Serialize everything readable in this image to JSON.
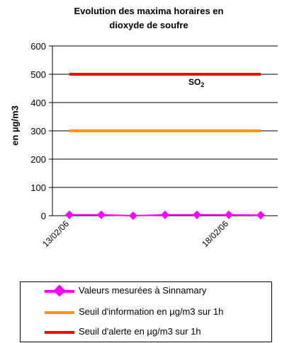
{
  "chart_data": {
    "type": "line",
    "title_line1": "Evolution des maxima horaires en",
    "title_line2": "dioxyde de soufre",
    "ylabel": "en µg/m3",
    "xlabel": "",
    "ylim": [
      0,
      600
    ],
    "yticks": [
      0,
      100,
      200,
      300,
      400,
      500,
      600
    ],
    "xticks": [
      "13/02/06",
      "18/02/06"
    ],
    "grid": true,
    "legend_position": "bottom",
    "annotation": "SO",
    "annotation_sub": "2",
    "series": [
      {
        "name": "Valeurs mesurées à Sinnamary",
        "color": "#ff00ff",
        "marker": "diamond",
        "x": [
          "13/02/06",
          "14/02/06",
          "15/02/06",
          "16/02/06",
          "17/02/06",
          "18/02/06",
          "19/02/06"
        ],
        "values": [
          3,
          3,
          0,
          3,
          3,
          3,
          2
        ]
      },
      {
        "name": "Seuil d'information en µg/m3 sur 1h",
        "color": "#ff9900",
        "x": [
          "13/02/06",
          "19/02/06"
        ],
        "values": [
          300,
          300
        ]
      },
      {
        "name": "Seuil d'alerte en µg/m3 sur 1h",
        "color": "#ff0000",
        "x": [
          "13/02/06",
          "19/02/06"
        ],
        "values": [
          500,
          500
        ]
      }
    ]
  }
}
